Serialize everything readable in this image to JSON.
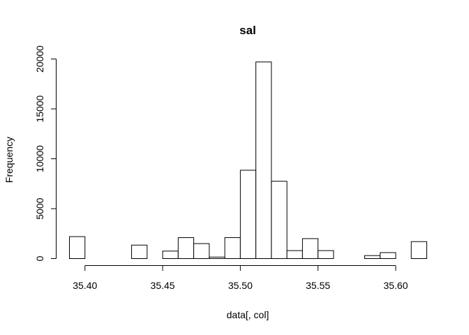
{
  "chart_data": {
    "type": "bar",
    "title": "sal",
    "xlabel": "data[, col]",
    "ylabel": "Frequency",
    "bar_color": "#ffffff",
    "edge_color": "#000000",
    "grid": false,
    "bin_width": 0.01,
    "xlim": [
      35.39,
      35.62
    ],
    "ylim": [
      0,
      20000
    ],
    "x_ticks": [
      35.4,
      35.45,
      35.5,
      35.55,
      35.6
    ],
    "x_tick_labels": [
      "35.40",
      "35.45",
      "35.50",
      "35.55",
      "35.60"
    ],
    "y_ticks": [
      0,
      5000,
      10000,
      15000,
      20000
    ],
    "y_tick_labels": [
      "0",
      "5000",
      "10000",
      "15000",
      "20000"
    ],
    "bins": [
      {
        "x0": 35.39,
        "x1": 35.4,
        "count": 2200
      },
      {
        "x0": 35.4,
        "x1": 35.41,
        "count": 0
      },
      {
        "x0": 35.41,
        "x1": 35.42,
        "count": 0
      },
      {
        "x0": 35.42,
        "x1": 35.43,
        "count": 0
      },
      {
        "x0": 35.43,
        "x1": 35.44,
        "count": 1350
      },
      {
        "x0": 35.44,
        "x1": 35.45,
        "count": 0
      },
      {
        "x0": 35.45,
        "x1": 35.46,
        "count": 750
      },
      {
        "x0": 35.46,
        "x1": 35.47,
        "count": 2100
      },
      {
        "x0": 35.47,
        "x1": 35.48,
        "count": 1500
      },
      {
        "x0": 35.48,
        "x1": 35.49,
        "count": 150
      },
      {
        "x0": 35.49,
        "x1": 35.5,
        "count": 2100
      },
      {
        "x0": 35.5,
        "x1": 35.51,
        "count": 8850
      },
      {
        "x0": 35.51,
        "x1": 35.52,
        "count": 19700
      },
      {
        "x0": 35.52,
        "x1": 35.53,
        "count": 7750
      },
      {
        "x0": 35.53,
        "x1": 35.54,
        "count": 800
      },
      {
        "x0": 35.54,
        "x1": 35.55,
        "count": 2000
      },
      {
        "x0": 35.55,
        "x1": 35.56,
        "count": 800
      },
      {
        "x0": 35.56,
        "x1": 35.57,
        "count": 0
      },
      {
        "x0": 35.57,
        "x1": 35.58,
        "count": 0
      },
      {
        "x0": 35.58,
        "x1": 35.59,
        "count": 300
      },
      {
        "x0": 35.59,
        "x1": 35.6,
        "count": 600
      },
      {
        "x0": 35.6,
        "x1": 35.61,
        "count": 0
      },
      {
        "x0": 35.61,
        "x1": 35.62,
        "count": 1700
      }
    ]
  }
}
